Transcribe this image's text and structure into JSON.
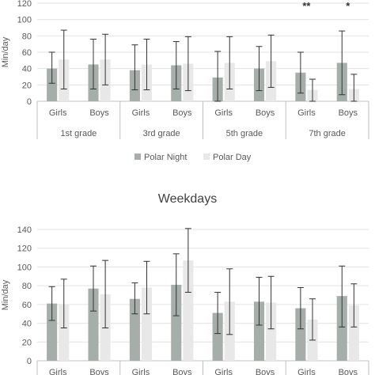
{
  "chart_data": [
    {
      "type": "bar",
      "title": "",
      "ylabel": "Min/day",
      "ylim": [
        0,
        120
      ],
      "yticks": [
        0,
        20,
        40,
        60,
        80,
        100,
        120
      ],
      "grid": true,
      "legend_position": "bottom",
      "categories": [
        "Girls",
        "Boys",
        "Girls",
        "Boys",
        "Girls",
        "Boys",
        "Girls",
        "Boys"
      ],
      "groups": [
        "1st grade",
        "3rd grade",
        "5th grade",
        "7th grade"
      ],
      "series": [
        {
          "name": "Polar Night",
          "color": "#a5aea9",
          "values": [
            40,
            45,
            38,
            44,
            29,
            40,
            35,
            47
          ],
          "err_low": [
            22,
            15,
            14,
            15,
            0,
            13,
            10,
            8
          ],
          "err_high": [
            60,
            76,
            69,
            73,
            61,
            67,
            60,
            86
          ]
        },
        {
          "name": "Polar Day",
          "color": "#e8e8e8",
          "values": [
            51,
            51,
            45,
            46,
            47,
            49,
            14,
            15
          ],
          "err_low": [
            15,
            20,
            14,
            13,
            15,
            17,
            0,
            0
          ],
          "err_high": [
            87,
            82,
            76,
            79,
            79,
            81,
            27,
            33
          ]
        }
      ],
      "annotations": [
        {
          "category_index": 6,
          "text": "**"
        },
        {
          "category_index": 7,
          "text": "*"
        }
      ]
    },
    {
      "type": "bar",
      "title": "Weekdays",
      "ylabel": "Min/day",
      "ylim": [
        0,
        140
      ],
      "yticks": [
        0,
        20,
        40,
        60,
        80,
        100,
        120,
        140
      ],
      "grid": true,
      "categories": [
        "Girls",
        "Boys",
        "Girls",
        "Boys",
        "Girls",
        "Boys",
        "Girls",
        "Boys"
      ],
      "series": [
        {
          "name": "Polar Night",
          "color": "#a5aea9",
          "values": [
            61,
            77,
            66,
            81,
            51,
            63,
            56,
            69
          ],
          "err_low": [
            43,
            53,
            50,
            48,
            29,
            38,
            34,
            36
          ],
          "err_high": [
            79,
            101,
            83,
            114,
            73,
            89,
            78,
            101
          ]
        },
        {
          "name": "Polar Day",
          "color": "#e8e8e8",
          "values": [
            60,
            71,
            78,
            107,
            63,
            62,
            44,
            59
          ],
          "err_low": [
            35,
            35,
            50,
            73,
            28,
            34,
            22,
            36
          ],
          "err_high": [
            87,
            107,
            106,
            141,
            98,
            90,
            66,
            82
          ]
        }
      ]
    }
  ]
}
